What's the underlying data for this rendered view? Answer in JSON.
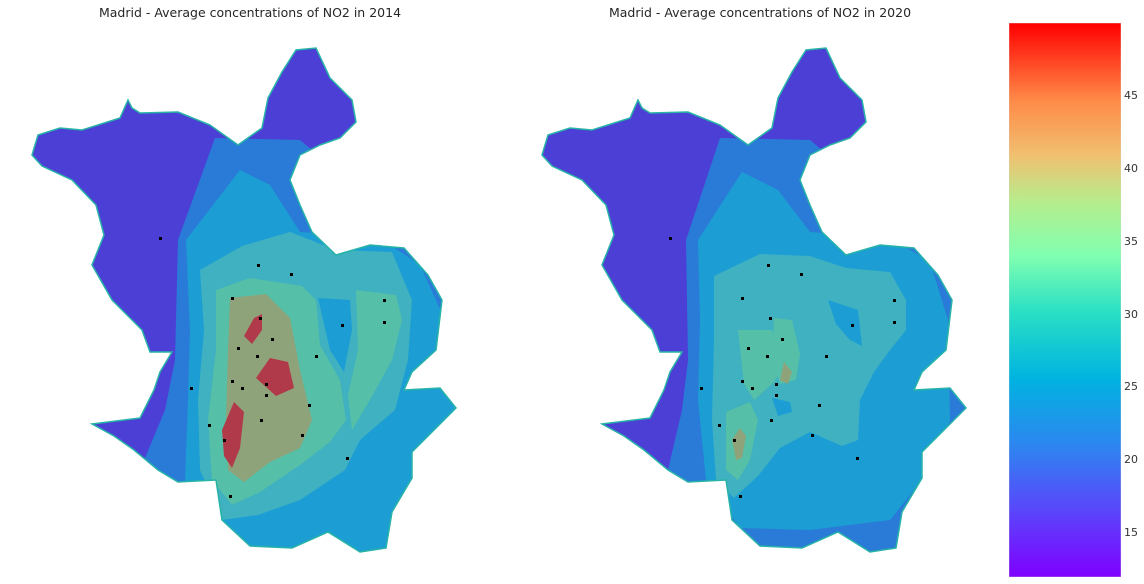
{
  "maps": [
    {
      "title": "Madrid - Average concentrations of NO2 in 2014"
    },
    {
      "title": "Madrid - Average concentrations of NO2 in 2020"
    }
  ],
  "colorbar": {
    "min": 12,
    "max": 50,
    "colormap": "rainbow",
    "ticks": [
      "45",
      "40",
      "35",
      "30",
      "25",
      "20",
      "15"
    ]
  },
  "colors": {
    "purple": "#4c3fd6",
    "blue": "#2a7bd8",
    "azure": "#1c9dd4",
    "teal": "#3fb1c0",
    "cyan_green": "#56bfa8",
    "olive": "#8fa37a",
    "red": "#b03a4a"
  }
}
